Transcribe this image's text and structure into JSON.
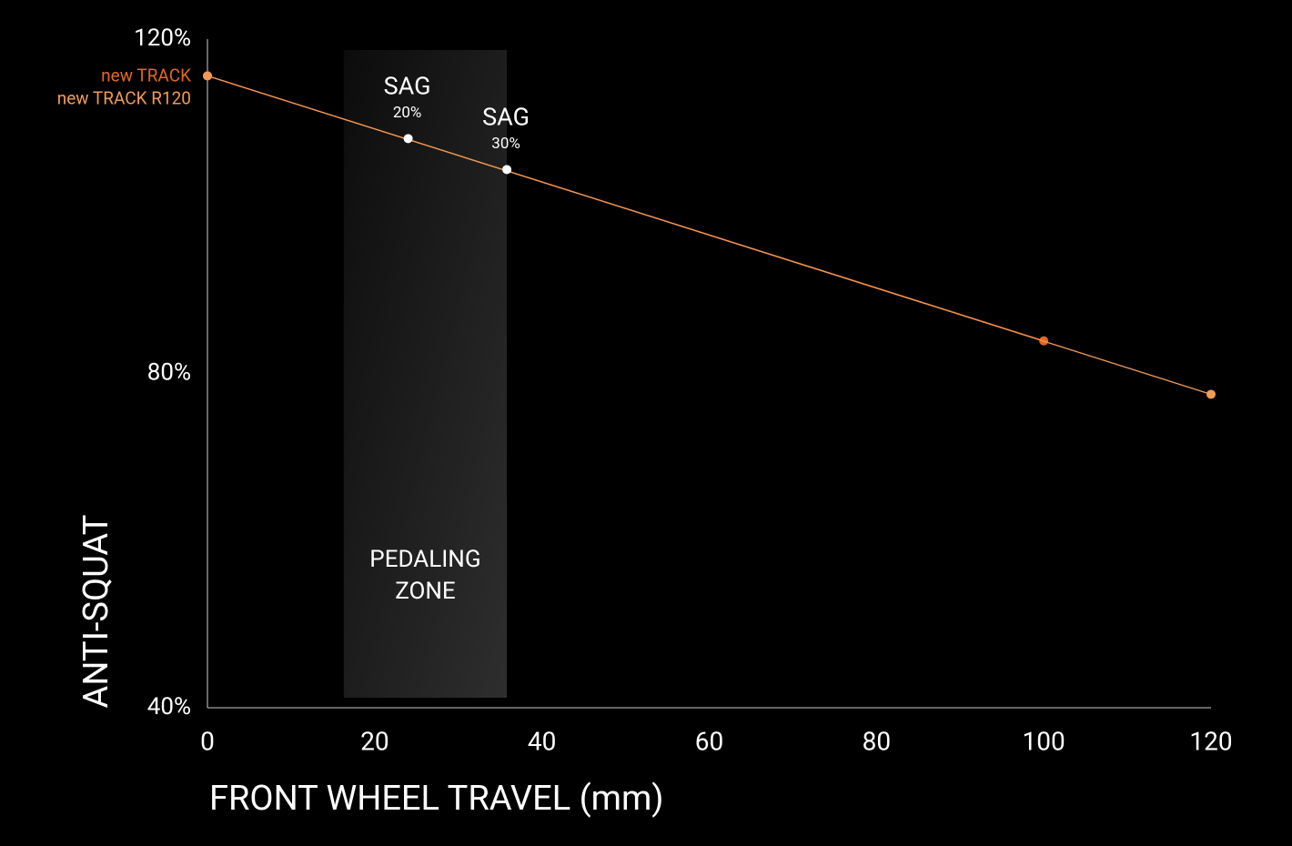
{
  "chart_data": {
    "type": "line",
    "x_label": "FRONT WHEEL TRAVEL (mm)",
    "y_label": "ANTI-SQUAT",
    "xlim": [
      0,
      120
    ],
    "ylim": [
      40,
      120
    ],
    "xticks": [
      0,
      20,
      40,
      60,
      80,
      100,
      120
    ],
    "yticks": [
      {
        "value": 40,
        "label": "40%"
      },
      {
        "value": 80,
        "label": "80%"
      },
      {
        "value": 120,
        "label": "120%"
      }
    ],
    "grid": false,
    "series": [
      {
        "name": "new TRACK",
        "color": "#e2691f",
        "x": [
          0,
          100
        ],
        "values": [
          115.6,
          83.9
        ]
      },
      {
        "name": "new TRACK R120",
        "color": "#f29a55",
        "x": [
          0,
          120
        ],
        "values": [
          115.6,
          77.5
        ]
      }
    ],
    "zone": {
      "label": [
        "PEDALING",
        "ZONE"
      ],
      "x": [
        16.3,
        35.8
      ]
    },
    "annotations": [
      {
        "text": "SAG",
        "sub": "20%",
        "x": 24,
        "y": 108.1
      },
      {
        "text": "SAG",
        "sub": "30%",
        "x": 35.8,
        "y": 104.4
      }
    ]
  }
}
